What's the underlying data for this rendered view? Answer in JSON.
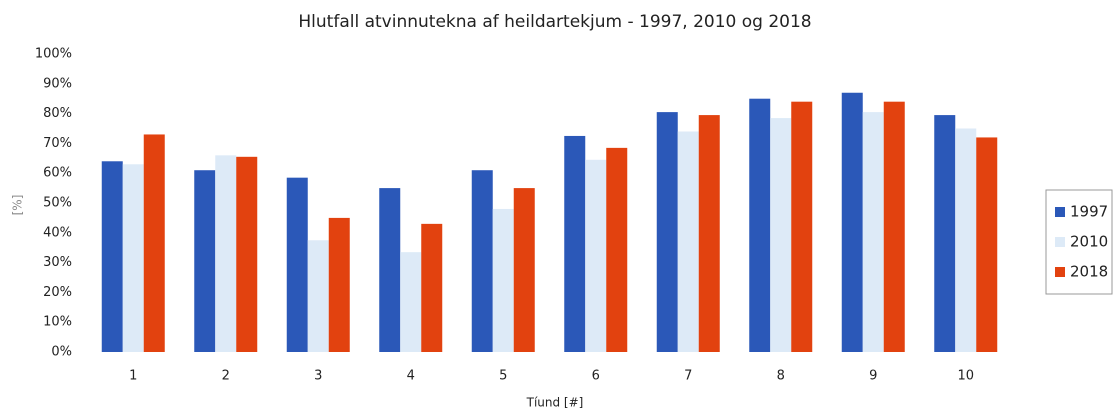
{
  "chart_data": {
    "type": "bar",
    "title": "Hlutfall atvinnutekna af heildartekjum - 1997, 2010 og 2018",
    "x_label": "Tíund [#]",
    "y_label": "[%]",
    "categories": [
      "1",
      "2",
      "3",
      "4",
      "5",
      "6",
      "7",
      "8",
      "9",
      "10"
    ],
    "series": [
      {
        "name": "1997",
        "color": "#2b58b8",
        "values": [
          64,
          61,
          58.5,
          55,
          61,
          72.5,
          80.5,
          85,
          87,
          79.5
        ]
      },
      {
        "name": "2010",
        "color": "#ddeaf7",
        "values": [
          63,
          66,
          37.5,
          33.5,
          48,
          64.5,
          74,
          78.5,
          80.5,
          75
        ]
      },
      {
        "name": "2018",
        "color": "#e2420f",
        "values": [
          73,
          65.5,
          45,
          43,
          55,
          68.5,
          79.5,
          84,
          84,
          72
        ]
      }
    ],
    "ylim": [
      0,
      100
    ],
    "yticks": [
      {
        "value": 0,
        "label": "0%"
      },
      {
        "value": 10,
        "label": "10%"
      },
      {
        "value": 20,
        "label": "20%"
      },
      {
        "value": 30,
        "label": "30%"
      },
      {
        "value": 40,
        "label": "40%"
      },
      {
        "value": 50,
        "label": "50%"
      },
      {
        "value": 60,
        "label": "60%"
      },
      {
        "value": 70,
        "label": "70%"
      },
      {
        "value": 80,
        "label": "80%"
      },
      {
        "value": 90,
        "label": "90%"
      },
      {
        "value": 100,
        "label": "100%"
      }
    ],
    "grid": false,
    "legend": "right"
  }
}
